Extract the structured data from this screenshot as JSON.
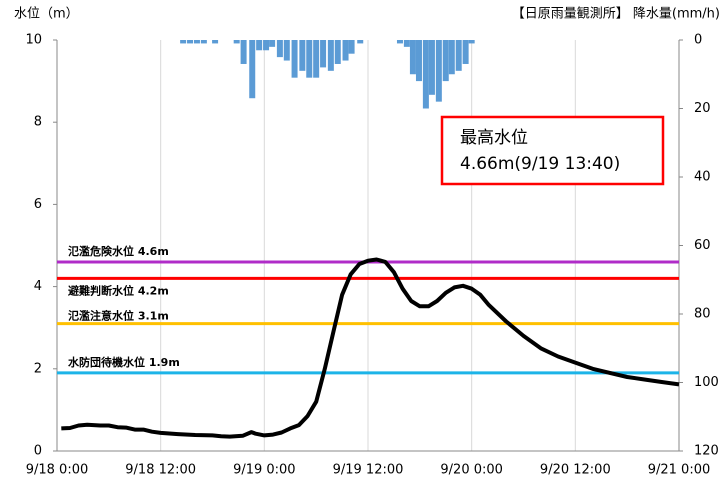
{
  "chart_data": {
    "type": "line",
    "y_axis_label": "水位（m）",
    "y2_axis_label": "【日原雨量観測所】 降水量(mm/h)",
    "xlim": [
      0,
      72
    ],
    "xticks": [
      {
        "value": 0,
        "label": "9/18 0:00"
      },
      {
        "value": 12,
        "label": "9/18 12:00"
      },
      {
        "value": 24,
        "label": "9/19 0:00"
      },
      {
        "value": 36,
        "label": "9/19 12:00"
      },
      {
        "value": 48,
        "label": "9/20 0:00"
      },
      {
        "value": 60,
        "label": "9/20 12:00"
      },
      {
        "value": 72,
        "label": "9/21 0:00"
      }
    ],
    "ylim": [
      0,
      10
    ],
    "yticks": [
      0,
      2,
      4,
      6,
      8,
      10
    ],
    "y2lim": [
      0,
      120
    ],
    "y2ticks": [
      0,
      20,
      40,
      60,
      80,
      100,
      120
    ],
    "y2_inverted": true,
    "grid": "x",
    "water_level": {
      "color": "#000000",
      "x": [
        0.5,
        1.5,
        2.5,
        3.5,
        5,
        6,
        7,
        8,
        9,
        10,
        11,
        12,
        14,
        16,
        18,
        19,
        20,
        21.5,
        22.5,
        23,
        24,
        25,
        26,
        27,
        28,
        29,
        30,
        31,
        32,
        33,
        34,
        35,
        36,
        37,
        38,
        39,
        40,
        41,
        42,
        43,
        44,
        45,
        46,
        47,
        48,
        49,
        50,
        52,
        54,
        56,
        58,
        60,
        62,
        64,
        66,
        68,
        70,
        72
      ],
      "values": [
        0.55,
        0.56,
        0.62,
        0.64,
        0.62,
        0.62,
        0.58,
        0.57,
        0.52,
        0.52,
        0.47,
        0.44,
        0.41,
        0.39,
        0.38,
        0.36,
        0.35,
        0.37,
        0.46,
        0.42,
        0.38,
        0.4,
        0.45,
        0.55,
        0.63,
        0.85,
        1.2,
        2.0,
        2.9,
        3.8,
        4.3,
        4.55,
        4.63,
        4.66,
        4.6,
        4.35,
        3.95,
        3.65,
        3.52,
        3.52,
        3.65,
        3.85,
        3.98,
        4.02,
        3.95,
        3.8,
        3.55,
        3.15,
        2.8,
        2.5,
        2.3,
        2.15,
        2.0,
        1.9,
        1.8,
        1.74,
        1.68,
        1.62
      ]
    },
    "rainfall": {
      "color": "#5b9bd5",
      "axis": "y2",
      "x": [
        14.6,
        15.4,
        16.2,
        17.0,
        18.3,
        20.8,
        21.6,
        22.6,
        23.4,
        24.2,
        24.9,
        25.8,
        26.6,
        27.5,
        28.4,
        29.2,
        30.0,
        30.8,
        31.7,
        32.5,
        33.4,
        34.1,
        35.1,
        39.7,
        40.5,
        41.2,
        41.9,
        42.7,
        43.4,
        44.2,
        45.0,
        45.7,
        46.5,
        47.3,
        48.0
      ],
      "values": [
        1,
        1,
        1,
        1,
        1,
        1,
        7,
        17,
        3,
        3,
        2,
        5,
        6,
        11,
        9,
        11,
        11,
        8,
        9,
        7,
        6,
        4,
        1,
        1,
        2,
        10,
        12,
        20,
        16,
        18,
        12,
        10,
        9,
        7,
        1
      ]
    },
    "reference_lines": [
      {
        "label": "氾濫危険水位 4.6m",
        "value": 4.6,
        "color": "#b02cc8"
      },
      {
        "label": "避難判断水位 4.2m",
        "value": 4.2,
        "color": "#ff0000"
      },
      {
        "label": "氾濫注意水位 3.1m",
        "value": 3.1,
        "color": "#ffc000"
      },
      {
        "label": "水防団待機水位 1.9m",
        "value": 1.9,
        "color": "#1cb4e8"
      }
    ],
    "annotation": {
      "lines": [
        "最高水位",
        "4.66m(9/19 13:40)"
      ],
      "border_color": "#ff0000"
    }
  }
}
